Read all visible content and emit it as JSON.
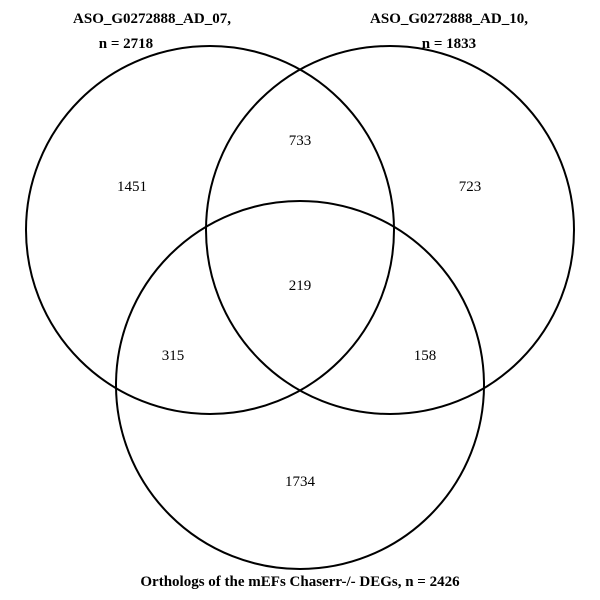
{
  "sets": [
    {
      "name_line1": "ASO_G0272888_AD_07,",
      "name_line2": "n =  2718"
    },
    {
      "name_line1": "ASO_G0272888_AD_10,",
      "name_line2": "n =  1833"
    },
    {
      "name_line1": "Orthologs of the mEFs Chaserr-/- DEGs, n =  2426"
    }
  ],
  "regions": {
    "only_07": "1451",
    "only_10": "723",
    "only_orthologs": "1734",
    "07_and_10": "733",
    "07_and_orthologs": "315",
    "10_and_orthologs": "158",
    "all_three": "219"
  }
}
